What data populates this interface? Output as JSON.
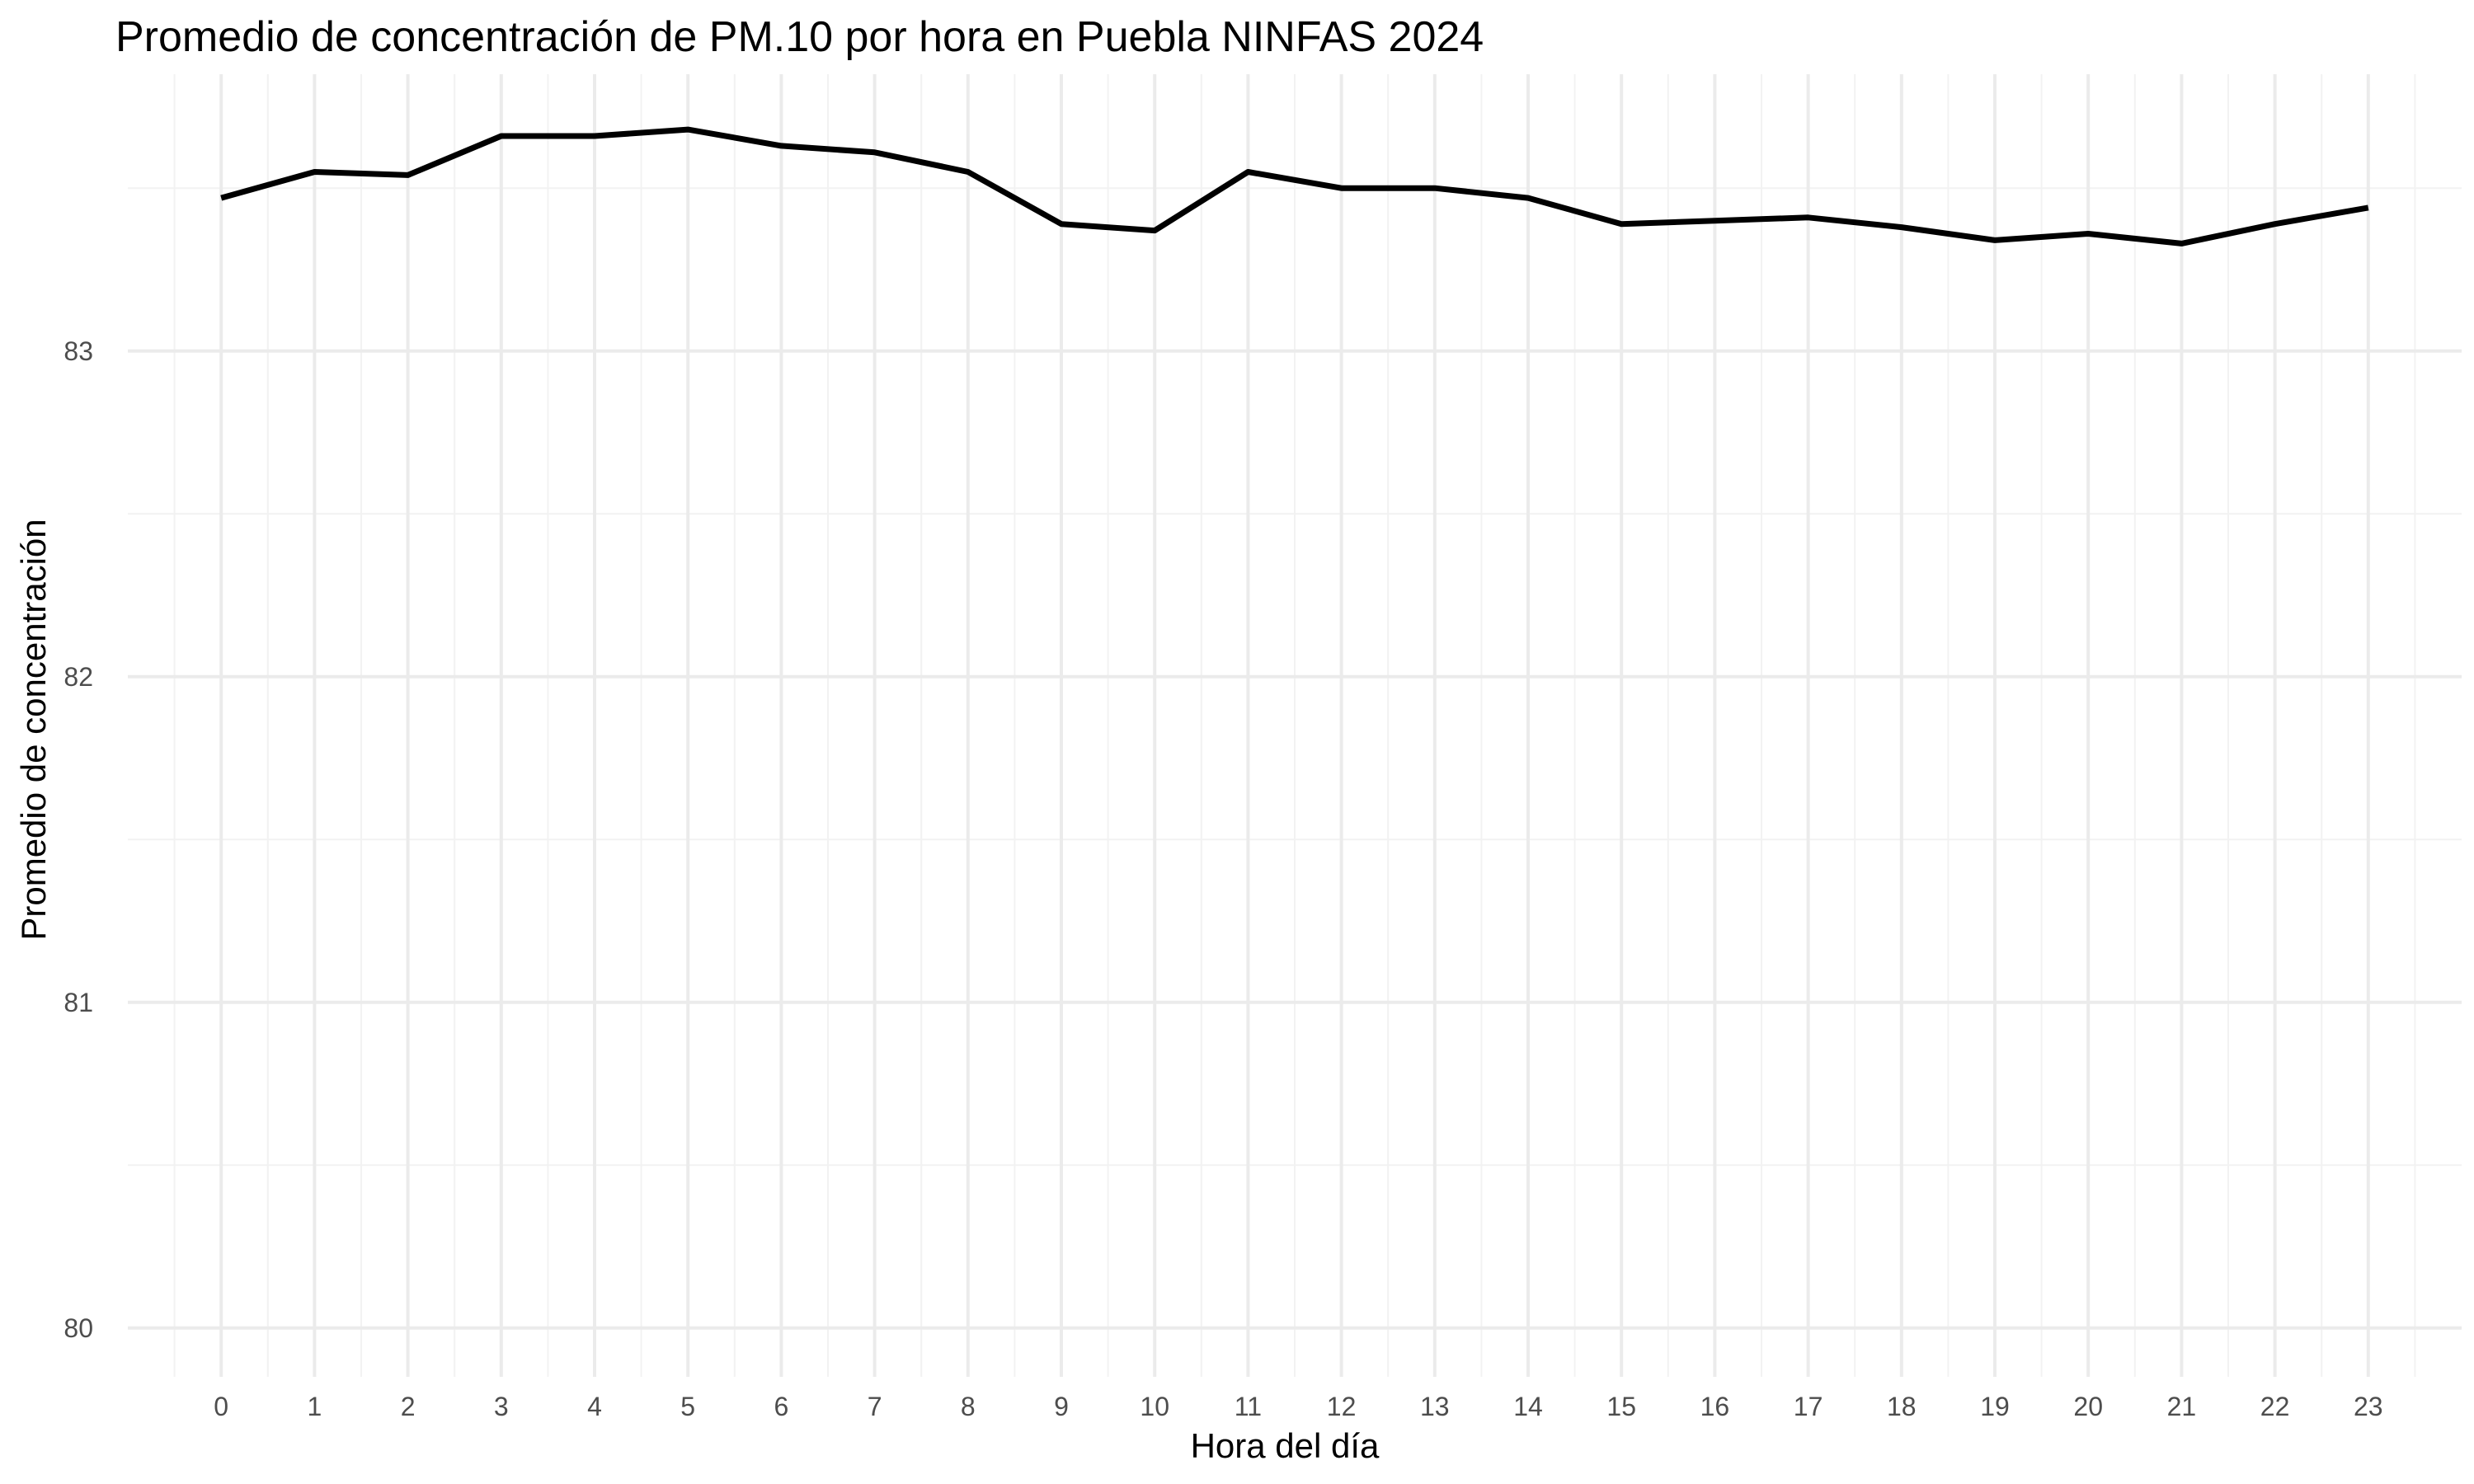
{
  "chart_data": {
    "type": "line",
    "title": "Promedio de concentración de PM.10 por hora en Puebla NINFAS 2024",
    "xlabel": "Hora del día",
    "ylabel": "Promedio de concentración",
    "x": [
      0,
      1,
      2,
      3,
      4,
      5,
      6,
      7,
      8,
      9,
      10,
      11,
      12,
      13,
      14,
      15,
      16,
      17,
      18,
      19,
      20,
      21,
      22,
      23
    ],
    "x_ticks": [
      "0",
      "1",
      "2",
      "3",
      "4",
      "5",
      "6",
      "7",
      "8",
      "9",
      "10",
      "11",
      "12",
      "13",
      "14",
      "15",
      "16",
      "17",
      "18",
      "19",
      "20",
      "21",
      "22",
      "23"
    ],
    "y_ticks": [
      "80",
      "81",
      "82",
      "83"
    ],
    "y_tick_values": [
      80,
      81,
      82,
      83
    ],
    "series": [
      {
        "values": [
          83.47,
          83.55,
          83.54,
          83.66,
          83.66,
          83.68,
          83.63,
          83.61,
          83.55,
          83.39,
          83.37,
          83.55,
          83.5,
          83.5,
          83.47,
          83.39,
          83.4,
          83.41,
          83.38,
          83.34,
          83.36,
          83.33,
          83.39,
          83.44
        ],
        "color": "#000000"
      }
    ],
    "xlim": [
      -1,
      24
    ],
    "ylim": [
      79.85,
      83.85
    ],
    "grid": true,
    "legend": "none"
  }
}
